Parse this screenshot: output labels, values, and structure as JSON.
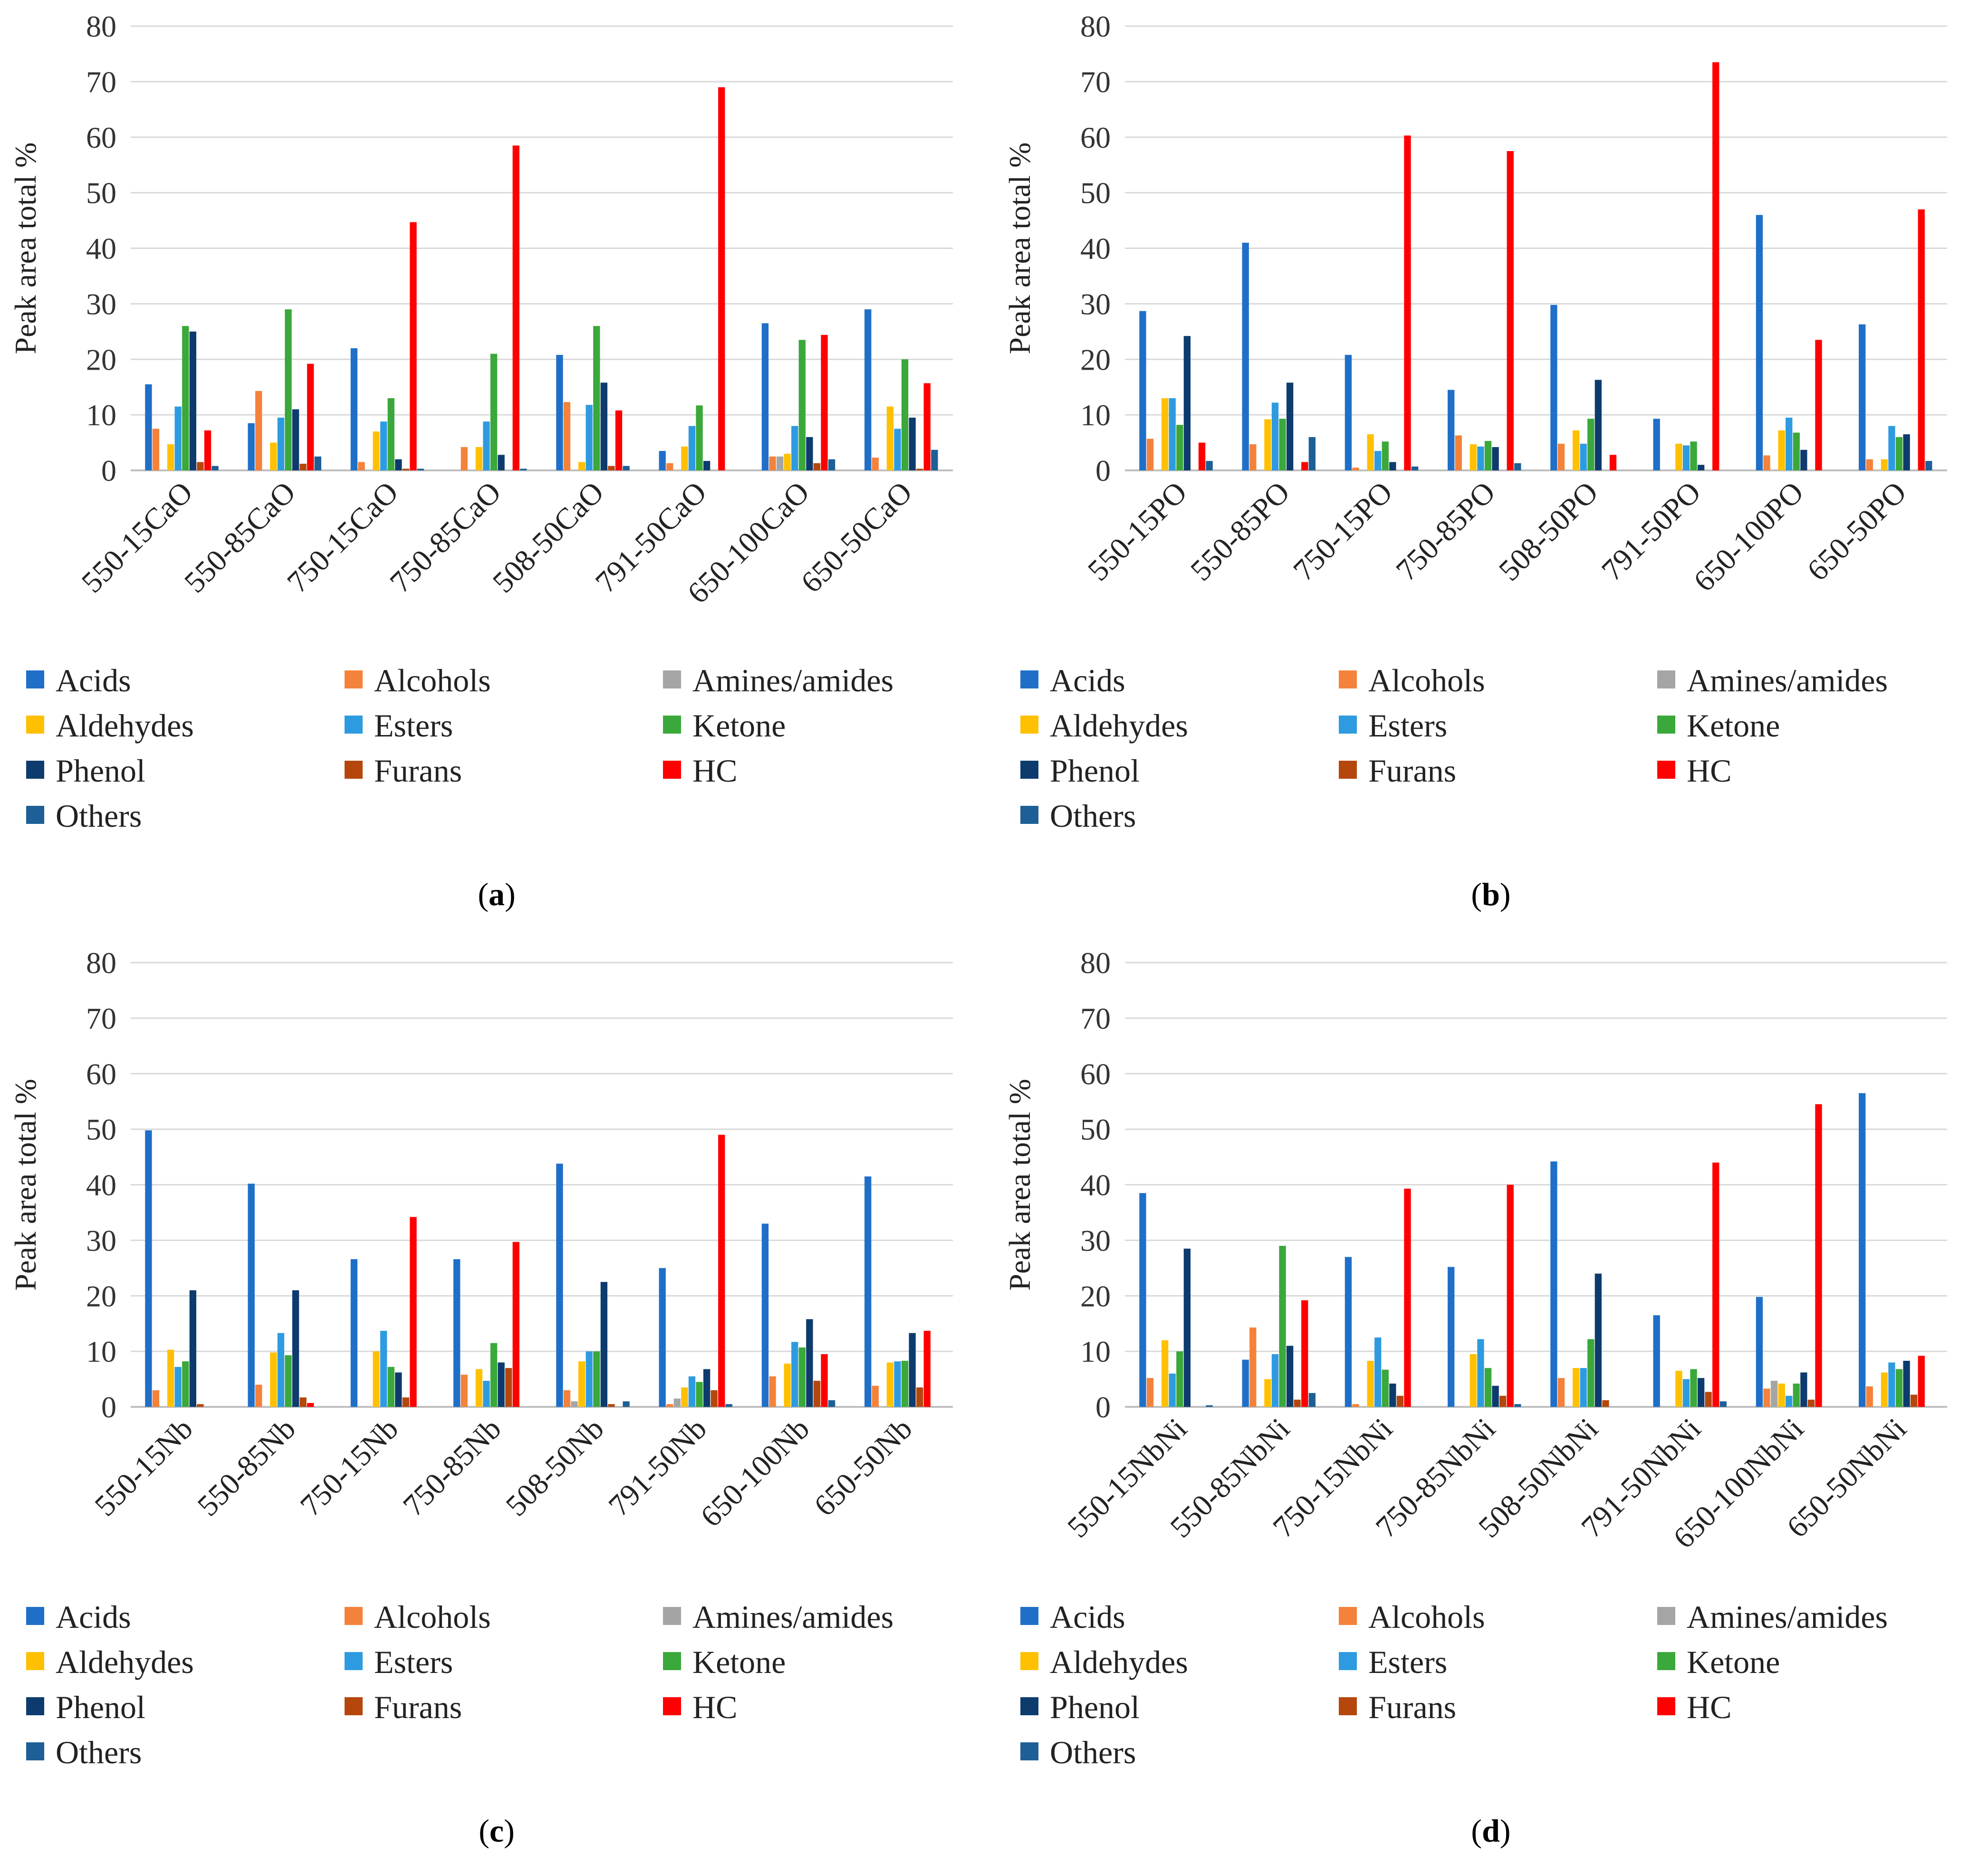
{
  "legend": [
    {
      "name": "Acids",
      "color": "#1f6fc8"
    },
    {
      "name": "Alcohols",
      "color": "#f4823a"
    },
    {
      "name": "Amines/amides",
      "color": "#a5a5a5"
    },
    {
      "name": "Aldehydes",
      "color": "#ffc000"
    },
    {
      "name": "Esters",
      "color": "#2e9be0"
    },
    {
      "name": "Ketone",
      "color": "#3aa83a"
    },
    {
      "name": "Phenol",
      "color": "#0d3b6e"
    },
    {
      "name": "Furans",
      "color": "#b5470d"
    },
    {
      "name": "HC",
      "color": "#ff0000"
    },
    {
      "name": "Others",
      "color": "#1d5f96"
    }
  ],
  "chart_data": [
    {
      "type": "bar",
      "panel": "a",
      "caption_open": "(",
      "caption_letter": "a",
      "caption_close": ")",
      "ylabel": "Peak area total %",
      "ylim": [
        0,
        80
      ],
      "yticks": [
        "0",
        "10",
        "20",
        "30",
        "40",
        "50",
        "60",
        "70",
        "80"
      ],
      "categories": [
        "550-15CaO",
        "550-85CaO",
        "750-15CaO",
        "750-85CaO",
        "508-50CaO",
        "791-50CaO",
        "650-100CaO",
        "650-50CaO"
      ],
      "series": [
        {
          "name": "Acids",
          "values": [
            15.5,
            8.5,
            22,
            0,
            20.8,
            3.5,
            26.5,
            29
          ]
        },
        {
          "name": "Alcohols",
          "values": [
            7.5,
            14.3,
            1.5,
            4.2,
            12.3,
            1.3,
            2.5,
            2.3
          ]
        },
        {
          "name": "Amines/amides",
          "values": [
            0,
            0,
            0,
            0,
            0,
            0,
            2.5,
            0
          ]
        },
        {
          "name": "Aldehydes",
          "values": [
            4.7,
            5,
            7,
            4.2,
            1.5,
            4.3,
            3,
            11.5
          ]
        },
        {
          "name": "Esters",
          "values": [
            11.5,
            9.5,
            8.8,
            8.8,
            11.8,
            8,
            8,
            7.5
          ]
        },
        {
          "name": "Ketone",
          "values": [
            26,
            29,
            13,
            21,
            26,
            11.7,
            23.5,
            20
          ]
        },
        {
          "name": "Phenol",
          "values": [
            25,
            11,
            2,
            2.8,
            15.8,
            1.7,
            6,
            9.5
          ]
        },
        {
          "name": "Furans",
          "values": [
            1.5,
            1.2,
            0.3,
            0,
            0.8,
            0,
            1.3,
            0.3
          ]
        },
        {
          "name": "HC",
          "values": [
            7.2,
            19.2,
            44.7,
            58.5,
            10.8,
            69,
            24.4,
            15.7
          ]
        },
        {
          "name": "Others",
          "values": [
            0.8,
            2.5,
            0.3,
            0.3,
            0.8,
            0,
            2,
            3.7
          ]
        }
      ]
    },
    {
      "type": "bar",
      "panel": "b",
      "caption_open": "(",
      "caption_letter": "b",
      "caption_close": ")",
      "ylabel": "Peak area total %",
      "ylim": [
        0,
        80
      ],
      "yticks": [
        "0",
        "10",
        "20",
        "30",
        "40",
        "50",
        "60",
        "70",
        "80"
      ],
      "categories": [
        "550-15PO",
        "550-85PO",
        "750-15PO",
        "750-85PO",
        "508-50PO",
        "791-50PO",
        "650-100PO",
        "650-50PO"
      ],
      "series": [
        {
          "name": "Acids",
          "values": [
            28.7,
            41,
            20.8,
            14.5,
            29.8,
            9.3,
            46,
            26.3
          ]
        },
        {
          "name": "Alcohols",
          "values": [
            5.7,
            4.7,
            0.5,
            6.3,
            4.8,
            0,
            2.7,
            2
          ]
        },
        {
          "name": "Amines/amides",
          "values": [
            0,
            0,
            0,
            0,
            0,
            0,
            0,
            0
          ]
        },
        {
          "name": "Aldehydes",
          "values": [
            13,
            9.2,
            6.5,
            4.7,
            7.2,
            4.8,
            7.2,
            2
          ]
        },
        {
          "name": "Esters",
          "values": [
            13,
            12.2,
            3.5,
            4.3,
            4.8,
            4.5,
            9.5,
            8
          ]
        },
        {
          "name": "Ketone",
          "values": [
            8.2,
            9.3,
            5.2,
            5.3,
            9.3,
            5.2,
            6.8,
            6
          ]
        },
        {
          "name": "Phenol",
          "values": [
            24.2,
            15.8,
            1.5,
            4.2,
            16.3,
            1,
            3.7,
            6.5
          ]
        },
        {
          "name": "Furans",
          "values": [
            0,
            0,
            0,
            0,
            0,
            0,
            0,
            0
          ]
        },
        {
          "name": "HC",
          "values": [
            5,
            1.5,
            60.3,
            57.5,
            2.8,
            73.5,
            23.5,
            47
          ]
        },
        {
          "name": "Others",
          "values": [
            1.7,
            6,
            0.7,
            1.3,
            0,
            0,
            0,
            1.7
          ]
        }
      ]
    },
    {
      "type": "bar",
      "panel": "c",
      "caption_open": "(",
      "caption_letter": "c",
      "caption_close": ")",
      "ylabel": "Peak area total %",
      "ylim": [
        0,
        80
      ],
      "yticks": [
        "0",
        "10",
        "20",
        "30",
        "40",
        "50",
        "60",
        "70",
        "80"
      ],
      "categories": [
        "550-15Nb",
        "550-85Nb",
        "750-15Nb",
        "750-85Nb",
        "508-50Nb",
        "791-50Nb",
        "650-100Nb",
        "650-50Nb"
      ],
      "series": [
        {
          "name": "Acids",
          "values": [
            49.8,
            40.2,
            26.6,
            26.6,
            43.8,
            25,
            33,
            41.5
          ]
        },
        {
          "name": "Alcohols",
          "values": [
            3,
            4,
            0,
            5.8,
            3,
            0.5,
            5.5,
            3.8
          ]
        },
        {
          "name": "Amines/amides",
          "values": [
            0,
            0,
            0,
            0,
            1,
            1.5,
            0,
            0
          ]
        },
        {
          "name": "Aldehydes",
          "values": [
            10.3,
            9.8,
            10,
            6.8,
            8.2,
            3.5,
            7.8,
            8
          ]
        },
        {
          "name": "Esters",
          "values": [
            7.2,
            13.3,
            13.7,
            4.7,
            10,
            5.5,
            11.7,
            8.2
          ]
        },
        {
          "name": "Ketone",
          "values": [
            8.2,
            9.3,
            7.2,
            11.5,
            10,
            4.5,
            10.7,
            8.3
          ]
        },
        {
          "name": "Phenol",
          "values": [
            21,
            21,
            6.2,
            8,
            22.5,
            6.8,
            15.8,
            13.3
          ]
        },
        {
          "name": "Furans",
          "values": [
            0.5,
            1.7,
            1.7,
            7,
            0.5,
            3,
            4.7,
            3.5
          ]
        },
        {
          "name": "HC",
          "values": [
            0,
            0.7,
            34.2,
            29.7,
            0,
            49,
            9.5,
            13.7
          ]
        },
        {
          "name": "Others",
          "values": [
            0,
            0,
            0,
            0,
            1,
            0.5,
            1.2,
            0
          ]
        }
      ]
    },
    {
      "type": "bar",
      "panel": "d",
      "caption_open": "(",
      "caption_letter": "d",
      "caption_close": ")",
      "ylabel": "Peak area total %",
      "ylim": [
        0,
        80
      ],
      "yticks": [
        "0",
        "10",
        "20",
        "30",
        "40",
        "50",
        "60",
        "70",
        "80"
      ],
      "categories": [
        "550-15NbNi",
        "550-85NbNi",
        "750-15NbNi",
        "750-85NbNi",
        "508-50NbNi",
        "791-50NbNi",
        "650-100NbNi",
        "650-50NbNi"
      ],
      "series": [
        {
          "name": "Acids",
          "values": [
            38.5,
            8.5,
            27,
            25.2,
            44.2,
            16.5,
            19.8,
            56.5
          ]
        },
        {
          "name": "Alcohols",
          "values": [
            5.2,
            14.3,
            0.5,
            0,
            5.2,
            0,
            3.3,
            3.7
          ]
        },
        {
          "name": "Amines/amides",
          "values": [
            0,
            0,
            0,
            0,
            0,
            0,
            4.7,
            0
          ]
        },
        {
          "name": "Aldehydes",
          "values": [
            12,
            5,
            8.3,
            9.5,
            7,
            6.5,
            4.2,
            6.2
          ]
        },
        {
          "name": "Esters",
          "values": [
            6,
            9.5,
            12.5,
            12.2,
            7,
            5,
            2,
            8
          ]
        },
        {
          "name": "Ketone",
          "values": [
            10,
            29,
            6.7,
            7,
            12.2,
            6.8,
            4.2,
            6.8
          ]
        },
        {
          "name": "Phenol",
          "values": [
            28.5,
            11,
            4.2,
            3.8,
            24,
            5.2,
            6.2,
            8.3
          ]
        },
        {
          "name": "Furans",
          "values": [
            0,
            1.3,
            2,
            2,
            1.2,
            2.7,
            1.3,
            2.2
          ]
        },
        {
          "name": "HC",
          "values": [
            0,
            19.2,
            39.3,
            40,
            0,
            44,
            54.5,
            9.2
          ]
        },
        {
          "name": "Others",
          "values": [
            0.3,
            2.5,
            0,
            0.5,
            0,
            1,
            0,
            0
          ]
        }
      ]
    }
  ]
}
